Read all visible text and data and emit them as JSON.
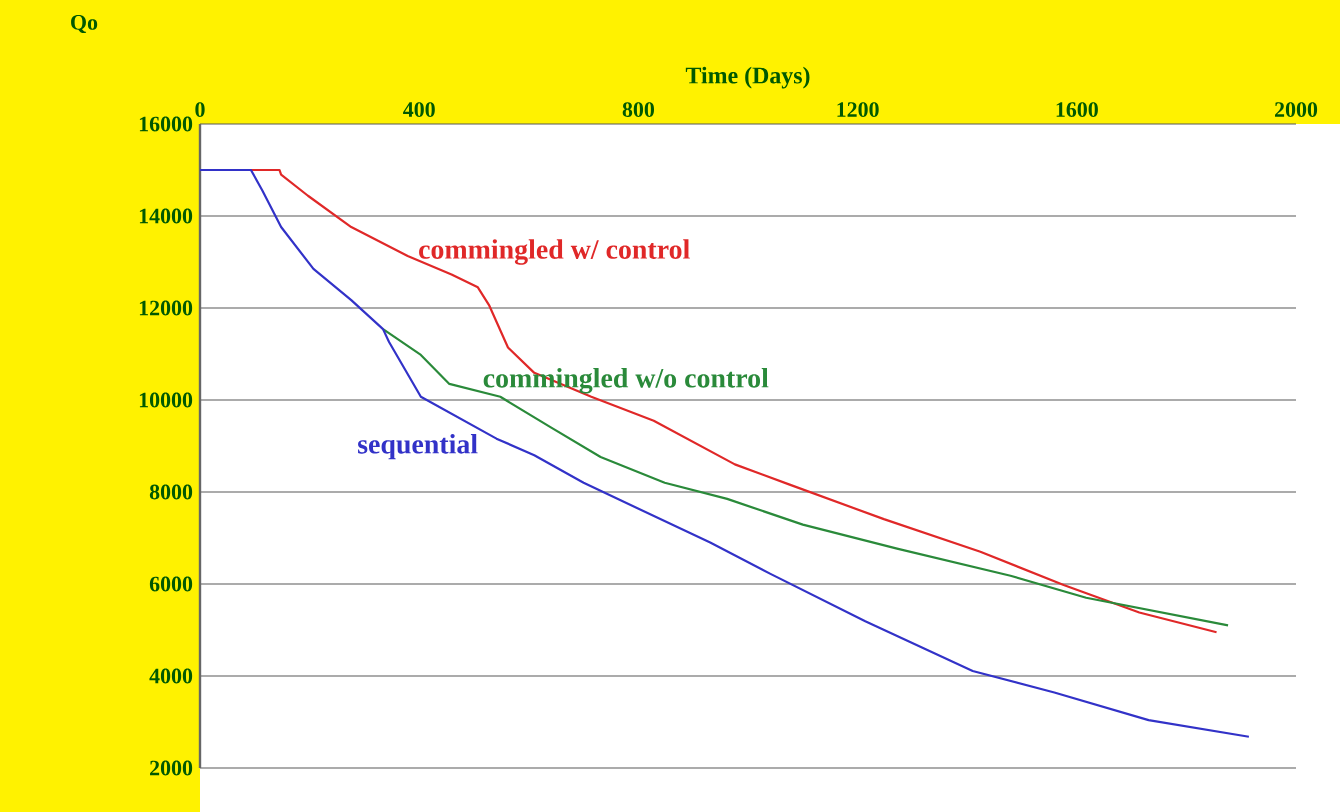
{
  "chart_data": {
    "type": "line",
    "xlabel": "Time (Days)",
    "ylabel": "Qo",
    "xlim": [
      0,
      2000
    ],
    "xticks": [
      0,
      400,
      800,
      1200,
      1600,
      2000
    ],
    "ylim": [
      2000,
      16000
    ],
    "yticks": [
      2000,
      4000,
      6000,
      8000,
      10000,
      12000,
      14000,
      16000
    ],
    "grid": "y",
    "marker": "none",
    "line_style": "solid",
    "series": [
      {
        "name": "commingled w/ control",
        "color": "#e02828",
        "x": [
          93,
          145,
          148,
          197,
          276,
          379,
          459,
          507,
          528,
          562,
          610,
          714,
          828,
          976,
          1076,
          1248,
          1424,
          1576,
          1714,
          1855
        ],
        "values": [
          15000,
          15000,
          14900,
          14440,
          13760,
          13130,
          12730,
          12450,
          12050,
          11140,
          10590,
          10070,
          9550,
          8600,
          8160,
          7410,
          6700,
          5980,
          5380,
          4950
        ]
      },
      {
        "name": "commingled w/o control",
        "color": "#2a8a3a",
        "x": [
          334,
          403,
          455,
          548,
          641,
          731,
          848,
          962,
          1100,
          1272,
          1479,
          1617,
          1876
        ],
        "values": [
          11540,
          10980,
          10350,
          10070,
          9400,
          8760,
          8200,
          7850,
          7290,
          6770,
          6180,
          5700,
          5100
        ]
      },
      {
        "name": "sequential",
        "color": "#3232c8",
        "x": [
          0,
          93,
          114,
          148,
          207,
          276,
          334,
          345,
          403,
          541,
          610,
          700,
          931,
          1041,
          1214,
          1410,
          1559,
          1731,
          1914
        ],
        "values": [
          15000,
          15000,
          14550,
          13760,
          12850,
          12170,
          11540,
          11260,
          10070,
          9160,
          8800,
          8200,
          6900,
          6220,
          5190,
          4110,
          3640,
          3040,
          2680
        ]
      }
    ]
  }
}
